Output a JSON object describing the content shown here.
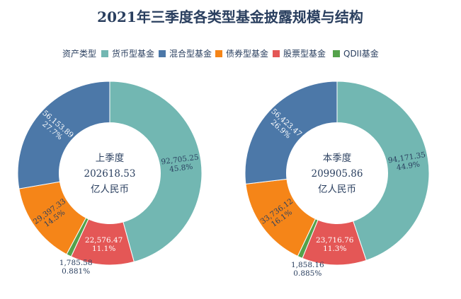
{
  "chart_data": {
    "type": "pie",
    "title": "2021年三季度各类型基金披露规模与结构",
    "legend": {
      "title": "资产类型",
      "placement": "top",
      "entries": [
        "货币型基金",
        "混合型基金",
        "债券型基金",
        "股票型基金",
        "QDII基金"
      ]
    },
    "colors": {
      "货币型基金": "#72b7b2",
      "混合型基金": "#4c78a8",
      "债券型基金": "#f58518",
      "股票型基金": "#e45756",
      "QDII基金": "#54a24b"
    },
    "hole": 0.55,
    "charts": [
      {
        "center_label": [
          "上季度",
          "202618.53",
          "亿人民币"
        ],
        "slices": [
          {
            "category": "货币型基金",
            "value": 92705.25,
            "value_text": "92,705.25",
            "percent_text": "45.8%"
          },
          {
            "category": "股票型基金",
            "value": 22576.47,
            "value_text": "22,576.47",
            "percent_text": "11.1%"
          },
          {
            "category": "QDII基金",
            "value": 1785.58,
            "value_text": "1,785.58",
            "percent_text": "0.881%"
          },
          {
            "category": "债券型基金",
            "value": 29397.33,
            "value_text": "29,397.33",
            "percent_text": "14.5%"
          },
          {
            "category": "混合型基金",
            "value": 56153.89,
            "value_text": "56,153.89",
            "percent_text": "27.7%"
          }
        ]
      },
      {
        "center_label": [
          "本季度",
          "209905.86",
          "亿人民币"
        ],
        "slices": [
          {
            "category": "货币型基金",
            "value": 94171.35,
            "value_text": "94,171.35",
            "percent_text": "44.9%"
          },
          {
            "category": "股票型基金",
            "value": 23716.76,
            "value_text": "23,716.76",
            "percent_text": "11.3%"
          },
          {
            "category": "QDII基金",
            "value": 1858.16,
            "value_text": "1,858.16",
            "percent_text": "0.885%"
          },
          {
            "category": "债券型基金",
            "value": 33736.12,
            "value_text": "33,736.12",
            "percent_text": "16.1%"
          },
          {
            "category": "混合型基金",
            "value": 56423.47,
            "value_text": "56,423.47",
            "percent_text": "26.9%"
          }
        ]
      }
    ]
  }
}
